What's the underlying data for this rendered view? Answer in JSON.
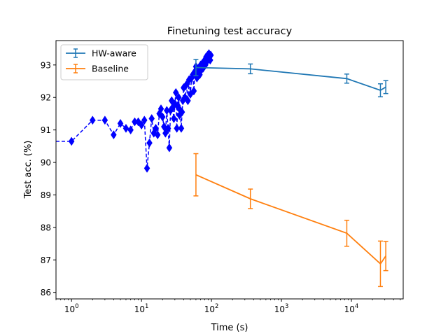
{
  "chart_data": {
    "type": "line",
    "title": "Finetuning test accuracy",
    "xlabel": "Time (s)",
    "ylabel": "Test acc. (%)",
    "xscale": "log",
    "xlim": [
      0.6,
      55000
    ],
    "ylim": [
      85.8,
      93.75
    ],
    "x_ticks": [
      {
        "value": 1,
        "base": "10",
        "exp": "0"
      },
      {
        "value": 10,
        "base": "10",
        "exp": "1"
      },
      {
        "value": 100,
        "base": "10",
        "exp": "2"
      },
      {
        "value": 1000,
        "base": "10",
        "exp": "3"
      },
      {
        "value": 10000,
        "base": "10",
        "exp": "4"
      }
    ],
    "y_ticks": [
      "86",
      "87",
      "88",
      "89",
      "90",
      "91",
      "92",
      "93"
    ],
    "legend_position": "top-left",
    "colors": {
      "hw": "#1f77b4",
      "baseline": "#ff7f0e",
      "trace": "#0000ff"
    },
    "series": [
      {
        "name": "HW-aware",
        "color": "#1f77b4",
        "x": [
          60,
          360,
          8600,
          26000,
          31000
        ],
        "y": [
          92.92,
          92.88,
          92.58,
          92.22,
          92.32
        ],
        "err": [
          0.25,
          0.15,
          0.14,
          0.2,
          0.2
        ]
      },
      {
        "name": "Baseline",
        "color": "#ff7f0e",
        "x": [
          60,
          360,
          8600,
          26000,
          31000
        ],
        "y": [
          89.62,
          88.88,
          87.82,
          86.88,
          87.12
        ],
        "err": [
          0.65,
          0.3,
          0.4,
          0.7,
          0.45
        ]
      }
    ],
    "trace": {
      "style": "dashed-diamond",
      "color": "#0000ff",
      "x": [
        0.6,
        1,
        2,
        3,
        4,
        5,
        6,
        7,
        8,
        9,
        10,
        11,
        12,
        13,
        14,
        15,
        16,
        17,
        18,
        19,
        20,
        21,
        22,
        23,
        24,
        25,
        26,
        27,
        28,
        29,
        30,
        31,
        32,
        33,
        34,
        35,
        36,
        37,
        38,
        39,
        40,
        42,
        44,
        46,
        48,
        50,
        52,
        54,
        56,
        58,
        60,
        62,
        64,
        66,
        68,
        70,
        72,
        74,
        76,
        78,
        80,
        82,
        84,
        86,
        88,
        90,
        92,
        94,
        96,
        98
      ],
      "y": [
        90.65,
        90.65,
        91.3,
        91.3,
        90.85,
        91.2,
        91.05,
        91.0,
        91.25,
        91.25,
        91.15,
        91.3,
        89.82,
        90.6,
        91.35,
        90.9,
        91.05,
        90.85,
        91.5,
        91.65,
        91.4,
        91.1,
        90.9,
        91.6,
        91.05,
        90.45,
        91.6,
        91.9,
        91.7,
        91.35,
        91.8,
        92.15,
        91.05,
        91.75,
        92.0,
        91.45,
        91.6,
        91.05,
        91.55,
        91.9,
        92.3,
        92.0,
        92.4,
        91.9,
        92.55,
        92.1,
        92.6,
        92.7,
        92.2,
        92.8,
        92.95,
        92.6,
        92.75,
        92.9,
        92.7,
        93.0,
        92.85,
        93.05,
        92.9,
        93.1,
        93.15,
        93.0,
        93.25,
        93.1,
        93.3,
        93.2,
        93.35,
        93.25,
        93.15,
        93.3
      ]
    }
  }
}
